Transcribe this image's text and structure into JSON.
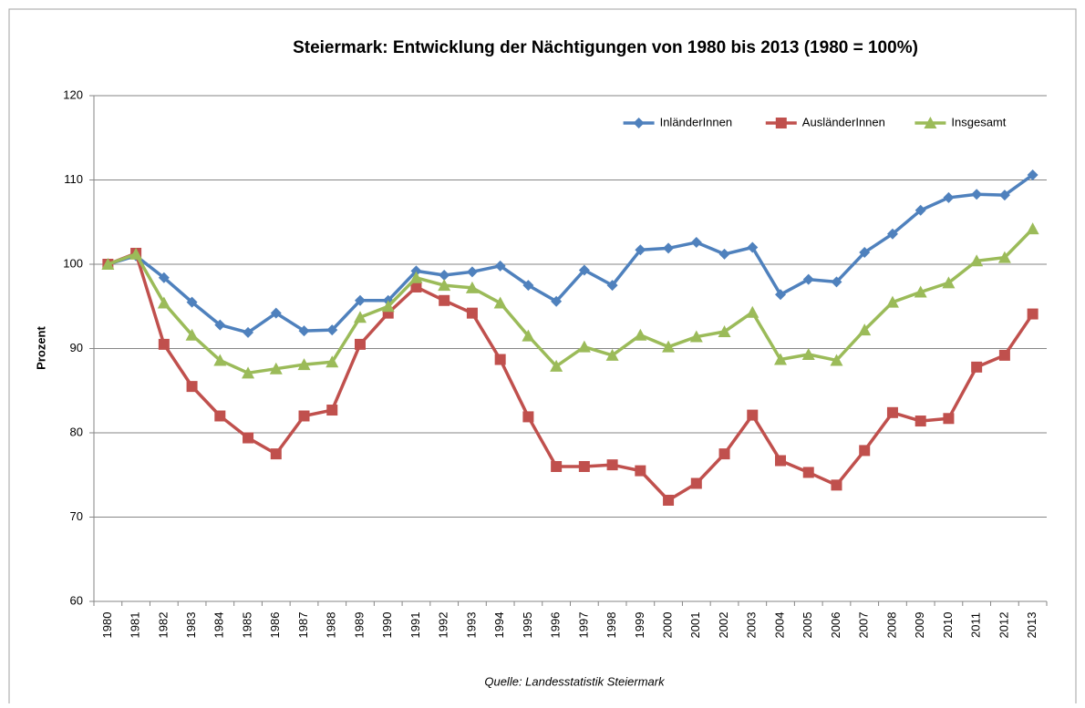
{
  "chart_data": {
    "type": "line",
    "title": "Steiermark: Entwicklung der Nächtigungen von 1980 bis 2013 (1980 = 100%)",
    "y_label": "Prozent",
    "source": "Quelle: Landesstatistik Steiermark",
    "categories": [
      "1980",
      "1981",
      "1982",
      "1983",
      "1984",
      "1985",
      "1986",
      "1987",
      "1988",
      "1989",
      "1990",
      "1991",
      "1992",
      "1993",
      "1994",
      "1995",
      "1996",
      "1997",
      "1998",
      "1999",
      "2000",
      "2001",
      "2002",
      "2003",
      "2004",
      "2005",
      "2006",
      "2007",
      "2008",
      "2009",
      "2010",
      "2011",
      "2012",
      "2013"
    ],
    "series": [
      {
        "name": "InländerInnen",
        "color": "#4f81bd",
        "marker": "diamond",
        "values": [
          100,
          101,
          98.4,
          95.5,
          92.8,
          91.9,
          94.2,
          92.1,
          92.2,
          95.7,
          95.7,
          99.2,
          98.7,
          99.1,
          99.8,
          97.5,
          95.6,
          99.3,
          97.5,
          101.7,
          101.9,
          102.6,
          101.2,
          102.0,
          96.4,
          98.2,
          97.9,
          101.4,
          103.6,
          106.4,
          107.9,
          108.3,
          108.2,
          110.6
        ]
      },
      {
        "name": "AusländerInnen",
        "color": "#c0504d",
        "marker": "square",
        "values": [
          100,
          101.3,
          90.5,
          85.5,
          82,
          79.4,
          77.5,
          82,
          82.7,
          90.5,
          94.2,
          97.3,
          95.7,
          94.2,
          88.7,
          81.9,
          76,
          76,
          76.2,
          75.5,
          72,
          74,
          77.5,
          82.1,
          76.7,
          75.3,
          73.8,
          77.9,
          82.4,
          81.4,
          81.7,
          87.8,
          89.2,
          94.1
        ]
      },
      {
        "name": "Insgesamt",
        "color": "#9bbb59",
        "marker": "triangle",
        "values": [
          100,
          101.2,
          95.4,
          91.6,
          88.6,
          87.1,
          87.6,
          88.1,
          88.4,
          93.7,
          95,
          98.4,
          97.5,
          97.2,
          95.4,
          91.5,
          87.9,
          90.2,
          89.2,
          91.6,
          90.2,
          91.4,
          92,
          94.3,
          88.7,
          89.3,
          88.6,
          92.2,
          95.5,
          96.7,
          97.8,
          100.4,
          100.8,
          104.2
        ]
      }
    ],
    "ylim": [
      60,
      120
    ],
    "yticks": [
      60,
      70,
      80,
      90,
      100,
      110,
      120
    ],
    "grid": true,
    "legend": "upper right"
  }
}
